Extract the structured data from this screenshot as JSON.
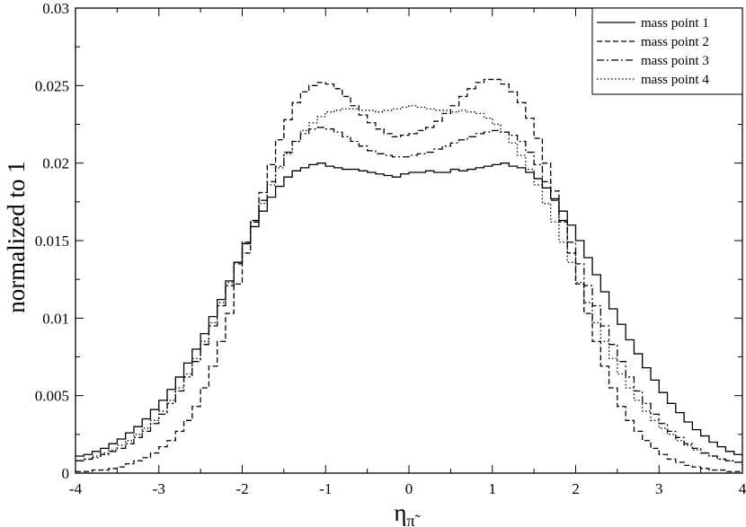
{
  "chart_data": {
    "type": "line",
    "style": "step histogram",
    "xlabel": "η",
    "xlabel_subscript": "π̃",
    "ylabel": "normalized to 1",
    "xlim": [
      -4,
      4
    ],
    "ylim": [
      0,
      0.03
    ],
    "x_ticks": [
      -4,
      -3,
      -2,
      -1,
      0,
      1,
      2,
      3,
      4
    ],
    "x_tick_labels": [
      "-4",
      "-3",
      "-2",
      "-1",
      "0",
      "1",
      "2",
      "3",
      "4"
    ],
    "y_ticks": [
      0,
      0.005,
      0.01,
      0.015,
      0.02,
      0.025,
      0.03
    ],
    "y_tick_labels": [
      "0",
      "0.005",
      "0.01",
      "0.015",
      "0.02",
      "0.025",
      "0.03"
    ],
    "legend_position": "top-right",
    "bin_width": 0.1,
    "bin_centers_start": -3.95,
    "series": [
      {
        "name": "mass point 1",
        "dash": "solid",
        "values": [
          0.0011,
          0.0012,
          0.0014,
          0.0016,
          0.0019,
          0.0022,
          0.0026,
          0.003,
          0.0035,
          0.0041,
          0.0047,
          0.0054,
          0.0062,
          0.0071,
          0.008,
          0.009,
          0.0101,
          0.0112,
          0.0124,
          0.0136,
          0.0148,
          0.0159,
          0.0169,
          0.0178,
          0.0185,
          0.0191,
          0.0195,
          0.0197,
          0.0199,
          0.02,
          0.0198,
          0.0197,
          0.0196,
          0.0196,
          0.0195,
          0.0194,
          0.0193,
          0.0192,
          0.0191,
          0.0193,
          0.0194,
          0.0194,
          0.0195,
          0.0194,
          0.0194,
          0.0196,
          0.0195,
          0.0196,
          0.0197,
          0.0198,
          0.0199,
          0.02,
          0.0198,
          0.0197,
          0.0194,
          0.019,
          0.0184,
          0.0177,
          0.0169,
          0.016,
          0.015,
          0.0139,
          0.0128,
          0.0117,
          0.0106,
          0.0096,
          0.0086,
          0.0077,
          0.0068,
          0.006,
          0.0052,
          0.0045,
          0.0039,
          0.0033,
          0.0028,
          0.0024,
          0.002,
          0.0017,
          0.0014,
          0.0012
        ]
      },
      {
        "name": "mass point 2",
        "dash": "dashed",
        "values": [
          0.0001,
          0.0001,
          0.0002,
          0.0002,
          0.0003,
          0.0004,
          0.0006,
          0.0008,
          0.001,
          0.0013,
          0.0017,
          0.0021,
          0.0027,
          0.0034,
          0.0043,
          0.0055,
          0.0069,
          0.0085,
          0.0103,
          0.0122,
          0.0142,
          0.0162,
          0.0181,
          0.0199,
          0.0215,
          0.0228,
          0.0239,
          0.0246,
          0.025,
          0.0252,
          0.0251,
          0.0248,
          0.0243,
          0.0237,
          0.0231,
          0.0226,
          0.0222,
          0.0219,
          0.0217,
          0.0218,
          0.0219,
          0.0221,
          0.0223,
          0.0227,
          0.0232,
          0.0237,
          0.0243,
          0.0248,
          0.0252,
          0.0254,
          0.0254,
          0.0251,
          0.0246,
          0.0239,
          0.0229,
          0.0216,
          0.02,
          0.0182,
          0.0162,
          0.0142,
          0.0122,
          0.0103,
          0.0085,
          0.0069,
          0.0055,
          0.0043,
          0.0034,
          0.0027,
          0.0021,
          0.0016,
          0.0012,
          0.0009,
          0.0007,
          0.0005,
          0.0004,
          0.0003,
          0.0002,
          0.0002,
          0.0001,
          0.0001
        ]
      },
      {
        "name": "mass point 3",
        "dash": "dash-dot",
        "values": [
          0.0008,
          0.0009,
          0.001,
          0.0012,
          0.0014,
          0.0016,
          0.0019,
          0.0023,
          0.0027,
          0.0032,
          0.0038,
          0.0045,
          0.0053,
          0.0062,
          0.0072,
          0.0083,
          0.0095,
          0.0108,
          0.0121,
          0.0135,
          0.0149,
          0.0163,
          0.0176,
          0.0188,
          0.0198,
          0.0207,
          0.0214,
          0.0219,
          0.0222,
          0.0223,
          0.0222,
          0.022,
          0.0217,
          0.0214,
          0.0211,
          0.0208,
          0.0206,
          0.0205,
          0.0204,
          0.0204,
          0.0205,
          0.0206,
          0.0207,
          0.0209,
          0.0211,
          0.0213,
          0.0215,
          0.0217,
          0.0219,
          0.022,
          0.0221,
          0.022,
          0.0218,
          0.0214,
          0.0207,
          0.0199,
          0.0188,
          0.0176,
          0.0163,
          0.0149,
          0.0135,
          0.0121,
          0.0108,
          0.0095,
          0.0083,
          0.0072,
          0.0062,
          0.0053,
          0.0045,
          0.0038,
          0.0032,
          0.0027,
          0.0023,
          0.0019,
          0.0016,
          0.0013,
          0.0011,
          0.0009,
          0.0008,
          0.0007
        ]
      },
      {
        "name": "mass point 4",
        "dash": "dotted",
        "values": [
          0.0008,
          0.0009,
          0.0011,
          0.0013,
          0.0015,
          0.0018,
          0.0021,
          0.0025,
          0.0029,
          0.0034,
          0.004,
          0.0047,
          0.0055,
          0.0064,
          0.0074,
          0.0085,
          0.0097,
          0.011,
          0.0123,
          0.0136,
          0.0149,
          0.0162,
          0.0174,
          0.0186,
          0.0197,
          0.0206,
          0.0214,
          0.0221,
          0.0226,
          0.023,
          0.0233,
          0.0234,
          0.0235,
          0.0235,
          0.0234,
          0.0234,
          0.0233,
          0.0234,
          0.0235,
          0.0236,
          0.0237,
          0.0236,
          0.0235,
          0.0234,
          0.0234,
          0.0233,
          0.0234,
          0.0233,
          0.0232,
          0.0229,
          0.0225,
          0.022,
          0.0213,
          0.0205,
          0.0196,
          0.0186,
          0.0174,
          0.0162,
          0.0149,
          0.0136,
          0.0123,
          0.011,
          0.0097,
          0.0085,
          0.0074,
          0.0064,
          0.0055,
          0.0047,
          0.004,
          0.0034,
          0.0029,
          0.0025,
          0.0021,
          0.0018,
          0.0015,
          0.0013,
          0.0011,
          0.0009,
          0.0008,
          0.0007
        ]
      }
    ]
  }
}
